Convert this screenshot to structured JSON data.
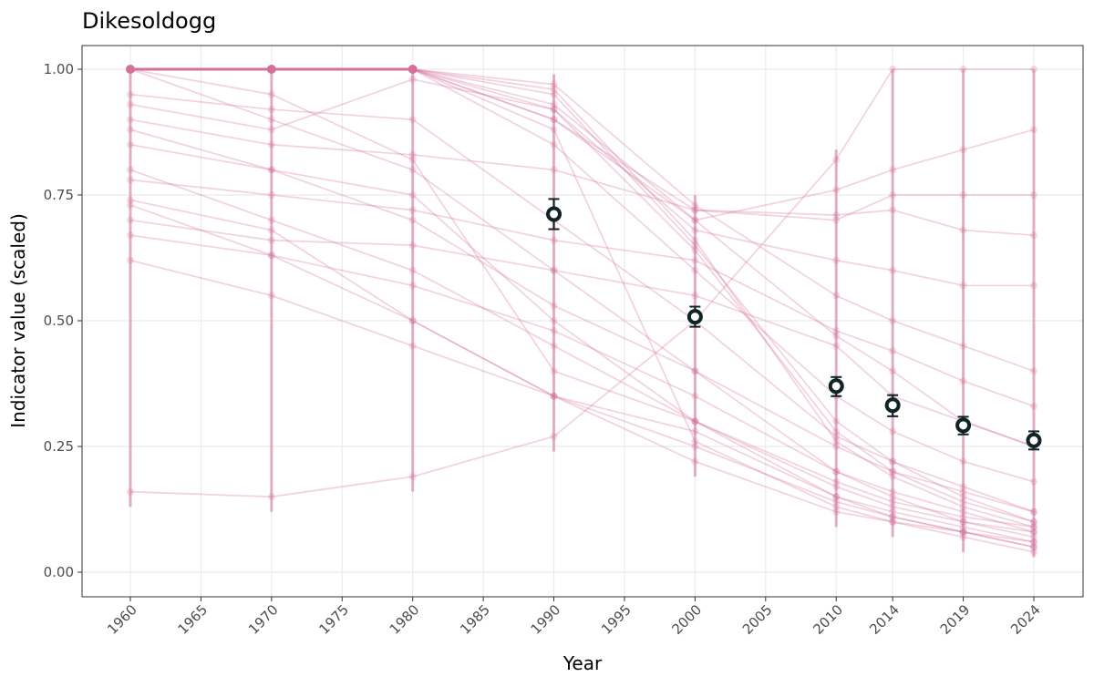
{
  "chart_data": {
    "type": "line",
    "title": "Dikesoldogg",
    "xlabel": "Year",
    "ylabel": "Indicator value (scaled)",
    "xlim": [
      1956.5,
      2027.5
    ],
    "ylim": [
      -0.05,
      1.05
    ],
    "x_ticks": [
      1960,
      1965,
      1970,
      1975,
      1980,
      1985,
      1990,
      1995,
      2000,
      2005,
      2010,
      2014,
      2019,
      2024
    ],
    "y_ticks": [
      0,
      0.25,
      0.5,
      0.75,
      1.0
    ],
    "y_tick_labels": [
      "0.00",
      "0.25",
      "0.50",
      "0.75",
      "1.00"
    ],
    "grid": true,
    "colors": {
      "series": "#d4719a",
      "mean": "#0f2424"
    },
    "years": [
      1960,
      1970,
      1980,
      1990,
      2000,
      2010,
      2014,
      2019,
      2024
    ],
    "series": [
      {
        "name": "s1",
        "values": [
          1,
          1,
          1,
          0.95,
          0.65,
          0.3,
          0.22,
          0.17,
          0.12
        ]
      },
      {
        "name": "s2",
        "values": [
          1,
          0.9,
          0.8,
          0.6,
          0.4,
          0.2,
          0.15,
          0.1,
          0.07
        ]
      },
      {
        "name": "s3",
        "values": [
          0.8,
          0.7,
          0.6,
          0.45,
          0.3,
          0.15,
          0.12,
          0.09,
          0.06
        ]
      },
      {
        "name": "s4",
        "values": [
          0.74,
          0.68,
          0.5,
          0.35,
          0.25,
          0.14,
          0.11,
          0.08,
          0.05
        ]
      },
      {
        "name": "s5",
        "values": [
          1,
          1,
          1,
          0.9,
          0.72,
          0.7,
          0.75,
          0.75,
          0.75
        ]
      },
      {
        "name": "s6",
        "values": [
          0.62,
          0.55,
          0.45,
          0.35,
          0.28,
          0.15,
          0.11,
          0.08,
          0.06
        ]
      },
      {
        "name": "s7",
        "values": [
          0.16,
          0.15,
          0.19,
          0.27,
          0.5,
          0.82,
          1.0,
          1.0,
          1.0
        ]
      },
      {
        "name": "s8",
        "values": [
          1,
          1,
          1,
          0.93,
          0.7,
          0.47,
          0.4,
          0.3,
          0.25
        ]
      },
      {
        "name": "s9",
        "values": [
          0.9,
          0.85,
          0.83,
          0.8,
          0.72,
          0.71,
          0.72,
          0.68,
          0.67
        ]
      },
      {
        "name": "s10",
        "values": [
          1,
          1,
          1,
          0.85,
          0.6,
          0.35,
          0.28,
          0.22,
          0.18
        ]
      },
      {
        "name": "s11",
        "values": [
          0.95,
          0.92,
          0.9,
          0.7,
          0.5,
          0.27,
          0.22,
          0.15,
          0.1
        ]
      },
      {
        "name": "s12",
        "values": [
          0.67,
          0.63,
          0.57,
          0.48,
          0.35,
          0.2,
          0.16,
          0.12,
          0.08
        ]
      },
      {
        "name": "s13",
        "values": [
          1,
          1,
          1,
          0.97,
          0.73,
          0.55,
          0.5,
          0.45,
          0.4
        ]
      },
      {
        "name": "s14",
        "values": [
          0.7,
          0.66,
          0.65,
          0.6,
          0.55,
          0.45,
          0.35,
          0.3,
          0.25
        ]
      },
      {
        "name": "s15",
        "values": [
          1,
          1,
          1,
          0.88,
          0.26,
          0.13,
          0.1,
          0.08,
          0.05
        ]
      },
      {
        "name": "s16",
        "values": [
          0.85,
          0.8,
          0.75,
          0.5,
          0.3,
          0.18,
          0.14,
          0.11,
          0.09
        ]
      },
      {
        "name": "s17",
        "values": [
          1,
          1,
          1,
          0.92,
          0.68,
          0.62,
          0.6,
          0.57,
          0.57
        ]
      },
      {
        "name": "s18",
        "values": [
          0.78,
          0.75,
          0.72,
          0.66,
          0.62,
          0.48,
          0.44,
          0.38,
          0.33
        ]
      },
      {
        "name": "s19",
        "values": [
          1,
          0.95,
          0.82,
          0.4,
          0.3,
          0.17,
          0.13,
          0.1,
          0.08
        ]
      },
      {
        "name": "s20",
        "values": [
          0.88,
          0.8,
          0.7,
          0.53,
          0.4,
          0.25,
          0.2,
          0.16,
          0.12
        ]
      },
      {
        "name": "s21",
        "values": [
          1,
          1,
          1,
          0.9,
          0.7,
          0.76,
          0.8,
          0.84,
          0.88
        ]
      },
      {
        "name": "s22",
        "values": [
          0.73,
          0.63,
          0.5,
          0.35,
          0.22,
          0.12,
          0.1,
          0.07,
          0.04
        ]
      },
      {
        "name": "s23",
        "values": [
          1,
          1,
          1,
          0.96,
          0.66,
          0.26,
          0.19,
          0.13,
          0.09
        ]
      },
      {
        "name": "s24",
        "values": [
          0.93,
          0.88,
          0.98,
          0.92,
          0.64,
          0.28,
          0.2,
          0.14,
          0.1
        ]
      }
    ],
    "reference_points": [
      {
        "x": 1960,
        "y": 1.0
      },
      {
        "x": 1970,
        "y": 1.0
      },
      {
        "x": 1980,
        "y": 1.0
      }
    ],
    "mean": [
      {
        "x": 1990,
        "y": 0.712,
        "lo": 0.682,
        "hi": 0.742
      },
      {
        "x": 2000,
        "y": 0.508,
        "lo": 0.488,
        "hi": 0.528
      },
      {
        "x": 2010,
        "y": 0.37,
        "lo": 0.35,
        "hi": 0.388
      },
      {
        "x": 2014,
        "y": 0.332,
        "lo": 0.31,
        "hi": 0.352
      },
      {
        "x": 2019,
        "y": 0.292,
        "lo": 0.274,
        "hi": 0.309
      },
      {
        "x": 2024,
        "y": 0.262,
        "lo": 0.244,
        "hi": 0.28
      }
    ]
  }
}
